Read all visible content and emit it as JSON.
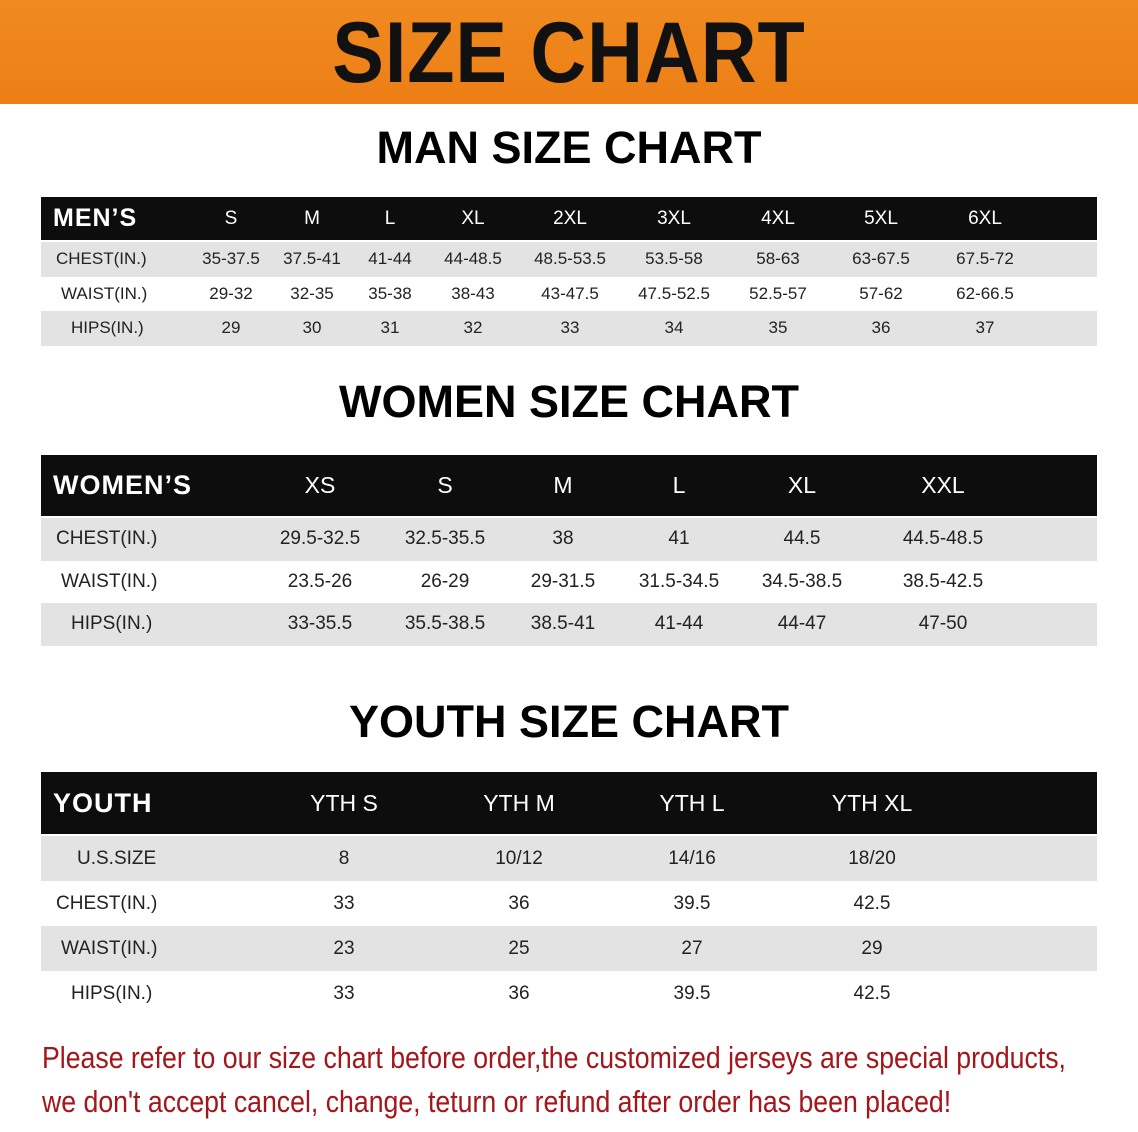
{
  "banner": {
    "title": "SIZE CHART",
    "color": "#ee8419"
  },
  "men": {
    "title": "MAN SIZE CHART",
    "header": "MEN’S",
    "sizes": [
      "S",
      "M",
      "L",
      "XL",
      "2XL",
      "3XL",
      "4XL",
      "5XL",
      "6XL"
    ],
    "rows": [
      {
        "label": "CHEST(IN.)",
        "values": [
          "35-37.5",
          "37.5-41",
          "41-44",
          "44-48.5",
          "48.5-53.5",
          "53.5-58",
          "58-63",
          "63-67.5",
          "67.5-72"
        ]
      },
      {
        "label": "WAIST(IN.)",
        "values": [
          "29-32",
          "32-35",
          "35-38",
          "38-43",
          "43-47.5",
          "47.5-52.5",
          "52.5-57",
          "57-62",
          "62-66.5"
        ]
      },
      {
        "label": "HIPS(IN.)",
        "values": [
          "29",
          "30",
          "31",
          "32",
          "33",
          "34",
          "35",
          "36",
          "37"
        ]
      }
    ]
  },
  "women": {
    "title": "WOMEN SIZE CHART",
    "header": "WOMEN’S",
    "sizes": [
      "XS",
      "S",
      "M",
      "L",
      "XL",
      "XXL"
    ],
    "rows": [
      {
        "label": "CHEST(IN.)",
        "values": [
          "29.5-32.5",
          "32.5-35.5",
          "38",
          "41",
          "44.5",
          "44.5-48.5"
        ]
      },
      {
        "label": "WAIST(IN.)",
        "values": [
          "23.5-26",
          "26-29",
          "29-31.5",
          "31.5-34.5",
          "34.5-38.5",
          "38.5-42.5"
        ]
      },
      {
        "label": "HIPS(IN.)",
        "values": [
          "33-35.5",
          "35.5-38.5",
          "38.5-41",
          "41-44",
          "44-47",
          "47-50"
        ]
      }
    ]
  },
  "youth": {
    "title": "YOUTH SIZE CHART",
    "header": "YOUTH",
    "sizes": [
      "YTH S",
      "YTH M",
      "YTH L",
      "YTH XL"
    ],
    "rows": [
      {
        "label": "U.S.SIZE",
        "values": [
          "8",
          "10/12",
          "14/16",
          "18/20"
        ]
      },
      {
        "label": "CHEST(IN.)",
        "values": [
          "33",
          "36",
          "39.5",
          "42.5"
        ]
      },
      {
        "label": "WAIST(IN.)",
        "values": [
          "23",
          "25",
          "27",
          "29"
        ]
      },
      {
        "label": "HIPS(IN.)",
        "values": [
          "33",
          "36",
          "39.5",
          "42.5"
        ]
      }
    ]
  },
  "note": {
    "line1": "Please refer to our size chart before order,the customized jerseys are special products,",
    "line2": "we don't accept cancel, change, teturn or refund after order has been placed!",
    "color": "#a3161b"
  }
}
